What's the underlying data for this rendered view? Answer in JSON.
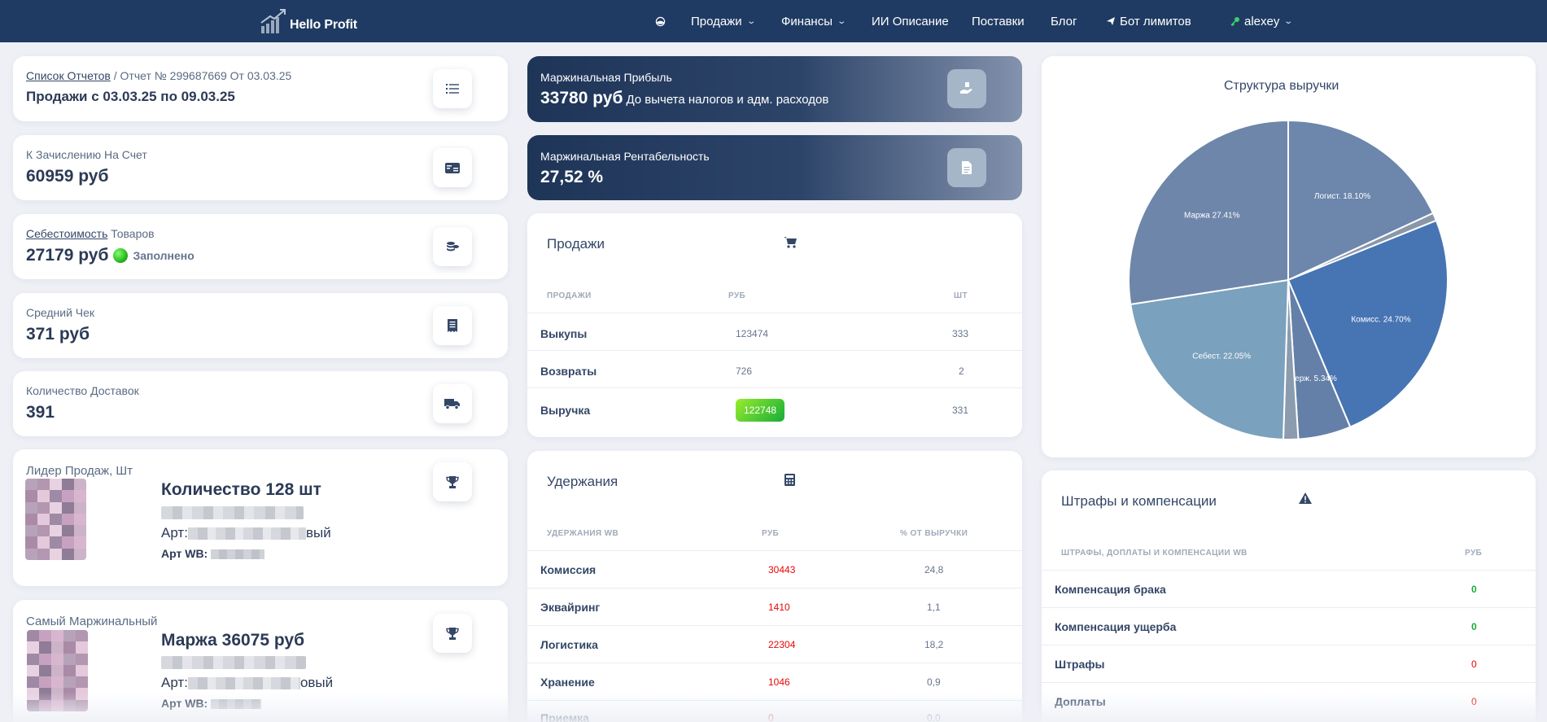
{
  "nav": {
    "logo_text": "Hello Profit",
    "items": [
      {
        "label": "Продажи",
        "dropdown": true
      },
      {
        "label": "Финансы",
        "dropdown": true
      },
      {
        "label": "ИИ Описание"
      },
      {
        "label": "Поставки"
      },
      {
        "label": "Блог"
      },
      {
        "label": "Бот лимитов"
      }
    ],
    "user": "alexey"
  },
  "reports": {
    "list_link": "Список Отчетов",
    "report_ref": " / Отчет № 299687669 От 03.03.25",
    "period": "Продажи с 03.03.25 по 09.03.25"
  },
  "payout": {
    "label": "К Зачислению На Счет",
    "value": "60959 руб"
  },
  "cost": {
    "label_link": "Себестоимость",
    "label_rest": " Товаров",
    "value": "27179 руб",
    "status": "Заполнено"
  },
  "avg_check": {
    "label": "Средний Чек",
    "value": "371 руб"
  },
  "deliveries": {
    "label": "Количество Доставок",
    "value": "391"
  },
  "leader": {
    "title": "Лидер Продаж, Шт",
    "quantity": "Количество 128 шт",
    "art_prefix": "Арт:",
    "art_suffix": "вый",
    "artwb": "Арт WB:"
  },
  "top_margin": {
    "title": "Самый Маржинальный",
    "margin": "Маржа 36075 руб",
    "art_prefix": "Арт:",
    "art_suffix": "овый",
    "artwb": "Арт WB:"
  },
  "margin_profit": {
    "label": "Маржинальная Прибыль",
    "value": "33780 руб",
    "note": "До вычета налогов и адм. расходов"
  },
  "margin_rate": {
    "label": "Маржинальная Рентабельность",
    "value": "27,52 %"
  },
  "sales": {
    "title": "Продажи",
    "headers": [
      "ПРОДАЖИ",
      "РУБ",
      "ШТ"
    ],
    "rows": [
      {
        "name": "Выкупы",
        "rub": "123474",
        "qty": "333"
      },
      {
        "name": "Возвраты",
        "rub": "726",
        "qty": "2"
      },
      {
        "name": "Выручка",
        "rub": "122748",
        "qty": "331"
      }
    ]
  },
  "deductions": {
    "title": "Удержания",
    "headers": [
      "УДЕРЖАНИЯ WB",
      "РУБ",
      "% ОТ ВЫРУЧКИ"
    ],
    "rows": [
      {
        "name": "Комиссия",
        "rub": "30443",
        "pct": "24,8"
      },
      {
        "name": "Эквайринг",
        "rub": "1410",
        "pct": "1,1"
      },
      {
        "name": "Логистика",
        "rub": "22304",
        "pct": "18,2"
      },
      {
        "name": "Хранение",
        "rub": "1046",
        "pct": "0,9"
      },
      {
        "name": "Приемка",
        "rub": "0",
        "pct": "0,0"
      }
    ]
  },
  "fines": {
    "title": "Штрафы и компенсации",
    "headers": [
      "ШТРАФЫ, ДОПЛАТЫ И КОМПЕНСАЦИИ WB",
      "РУБ"
    ],
    "rows": [
      {
        "name": "Компенсация брака",
        "rub": "0",
        "color": "green"
      },
      {
        "name": "Компенсация ущерба",
        "rub": "0",
        "color": "green"
      },
      {
        "name": "Штрафы",
        "rub": "0",
        "color": "red"
      },
      {
        "name": "Доплаты",
        "rub": "0",
        "color": "red"
      }
    ]
  },
  "chart_data": {
    "type": "pie",
    "title": "Структура выручки",
    "slices": [
      {
        "label": "Логист. 18.10%",
        "value": 18.1,
        "color": "#6c86ac"
      },
      {
        "label": "",
        "value": 0.8,
        "color": "#8a97a8"
      },
      {
        "label": "Комисс. 24.70%",
        "value": 24.7,
        "color": "#4774b3"
      },
      {
        "label": "Удерж. 5.34%",
        "value": 5.34,
        "color": "#6480a8"
      },
      {
        "label": "",
        "value": 1.5,
        "color": "#8a9cae"
      },
      {
        "label": "Себест. 22.05%",
        "value": 22.05,
        "color": "#7aa1bd"
      },
      {
        "label": "Маржа 27.41%",
        "value": 27.41,
        "color": "#6e86aa"
      }
    ]
  }
}
